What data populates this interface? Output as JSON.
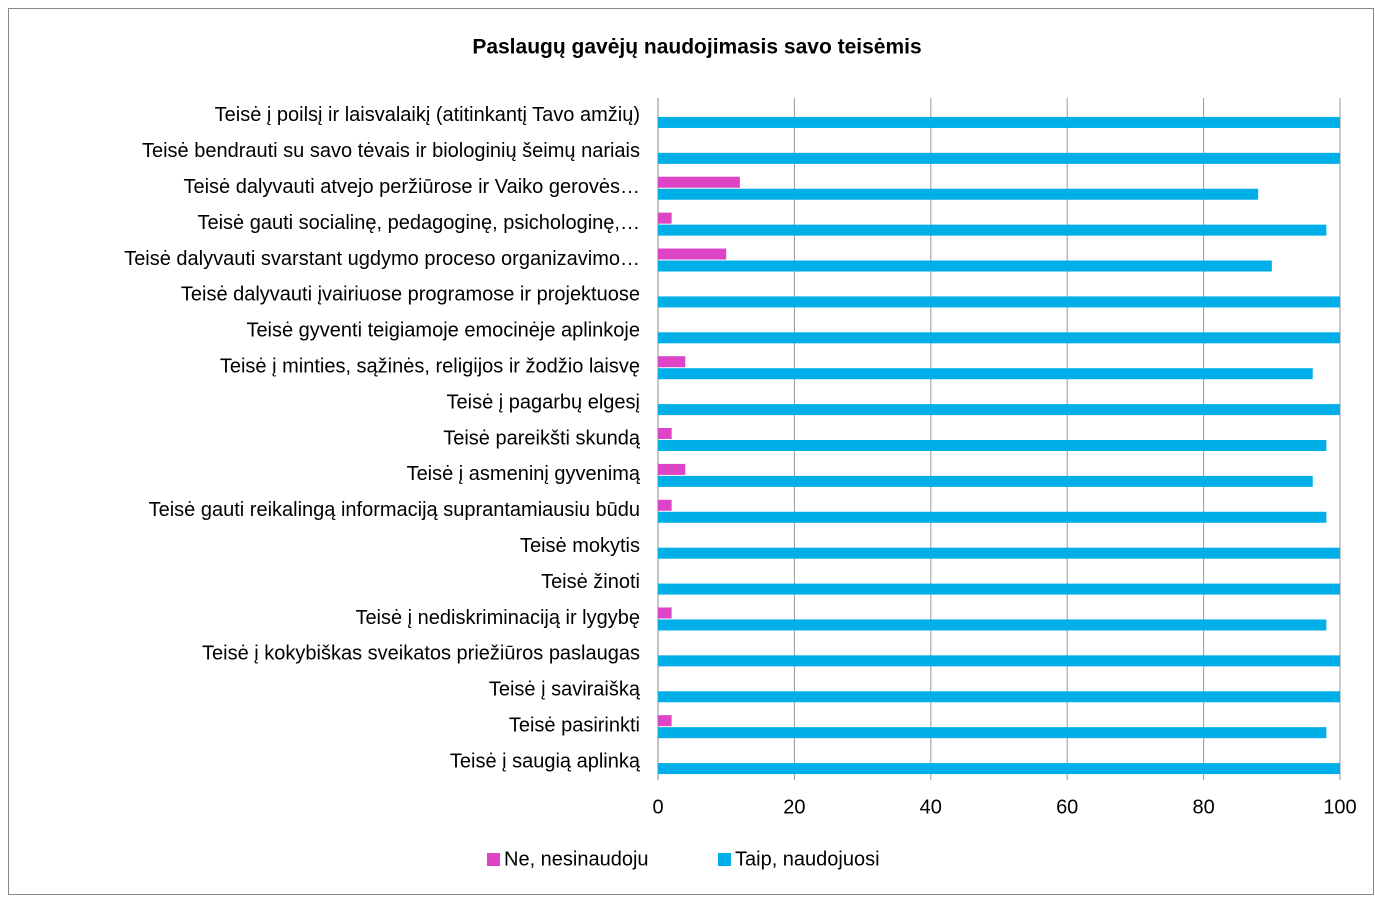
{
  "chart_data": {
    "type": "hbar",
    "title": "Paslaugų gavėjų naudojimasis savo teisėmis",
    "categories": [
      "Teisė į poilsį ir laisvalaikį (atitinkantį Tavo amžių)",
      "Teisė bendrauti su savo tėvais ir biologinių šeimų nariais",
      "Teisė dalyvauti atvejo peržiūrose ir Vaiko gerovės…",
      "Teisė gauti socialinę, pedagoginę, psichologinę,…",
      "Teisė dalyvauti svarstant ugdymo proceso organizavimo…",
      "Teisė dalyvauti įvairiuose programose ir projektuose",
      "Teisė gyventi teigiamoje emocinėje aplinkoje",
      "Teisė į minties, sąžinės, religijos ir žodžio laisvę",
      "Teisė į pagarbų elgesį",
      "Teisė pareikšti skundą",
      "Teisė į asmeninį gyvenimą",
      "Teisė gauti reikalingą informaciją suprantamiausiu būdu",
      "Teisė mokytis",
      "Teisė žinoti",
      "Teisė į nediskriminaciją ir lygybę",
      "Teisė į kokybiškas sveikatos priežiūros paslaugas",
      "Teisė į saviraišką",
      "Teisė pasirinkti",
      "Teisė į saugią aplinką"
    ],
    "series": [
      {
        "name": "Ne, nesinaudoju",
        "color": "#dd44c6",
        "values": [
          0,
          0,
          12,
          2,
          10,
          0,
          0,
          4,
          0,
          2,
          4,
          2,
          0,
          0,
          2,
          0,
          0,
          2,
          0
        ]
      },
      {
        "name": "Taip, naudojuosi",
        "color": "#00aee8",
        "values": [
          100,
          100,
          88,
          98,
          90,
          100,
          100,
          96,
          100,
          98,
          96,
          98,
          100,
          100,
          98,
          100,
          100,
          98,
          100
        ]
      }
    ],
    "xlim": [
      0,
      100
    ],
    "xticks": [
      0,
      20,
      40,
      60,
      80,
      100
    ],
    "grid": true,
    "legend": "bottom"
  }
}
